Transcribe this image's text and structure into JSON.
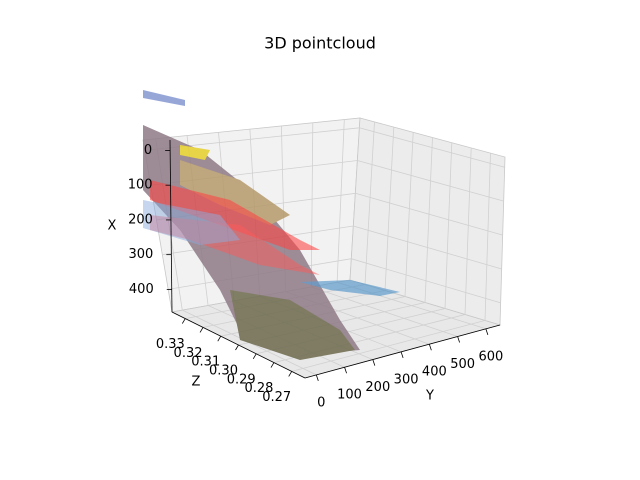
{
  "chart_data": {
    "type": "scatter3d",
    "title": "3D pointcloud",
    "xlabel": "X",
    "ylabel": "Y",
    "zlabel": "Z",
    "xlim": [
      -30,
      465
    ],
    "xticks": [
      0,
      100,
      200,
      300,
      400
    ],
    "ylim": [
      -40,
      650
    ],
    "yticks": [
      0,
      100,
      200,
      300,
      400,
      500,
      600
    ],
    "zlim": [
      0.3375,
      0.2625
    ],
    "zticks": [
      0.33,
      0.32,
      0.31,
      {
        "value": 0.3,
        "label": "0.30"
      },
      0.29,
      0.28,
      0.27
    ],
    "grid": true
  }
}
